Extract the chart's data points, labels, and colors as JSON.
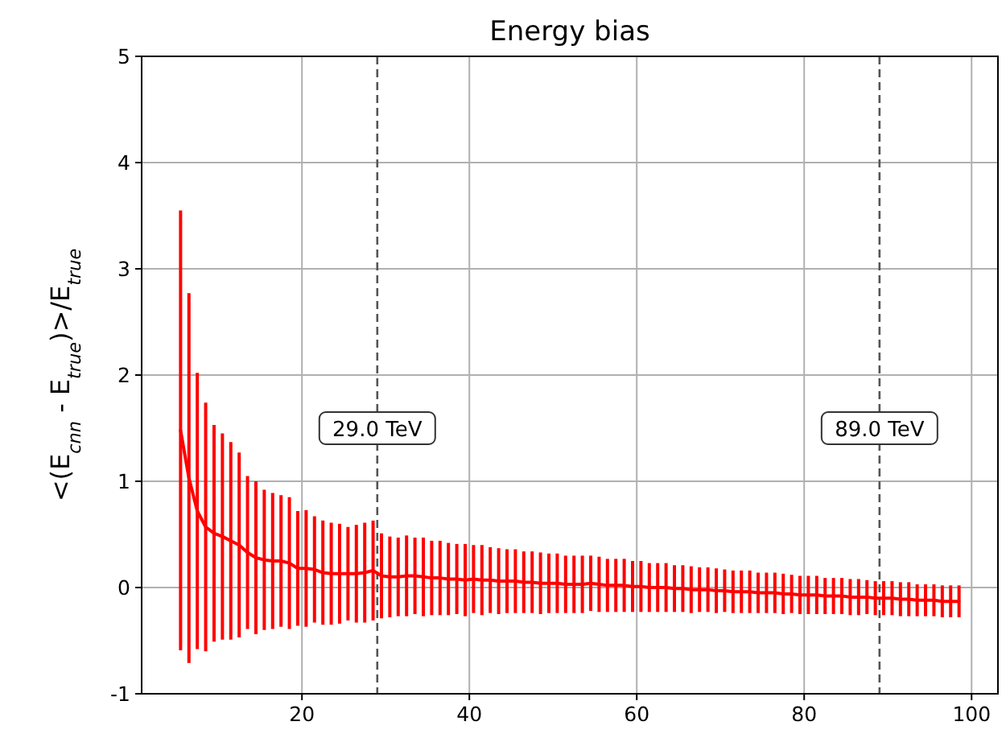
{
  "chart_data": {
    "type": "line",
    "title": "Energy bias",
    "ylabel": "<(E$_{cnn}$ - E$_{true}$)>/E$_{true}$",
    "x": [
      5.5,
      6.5,
      7.5,
      8.5,
      9.5,
      10.5,
      11.5,
      12.5,
      13.5,
      14.5,
      15.5,
      16.5,
      17.5,
      18.5,
      19.5,
      20.5,
      21.5,
      22.5,
      23.5,
      24.5,
      25.5,
      26.5,
      27.5,
      28.5,
      29.5,
      30.5,
      31.5,
      32.5,
      33.5,
      34.5,
      35.5,
      36.5,
      37.5,
      38.5,
      39.5,
      40.5,
      41.5,
      42.5,
      43.5,
      44.5,
      45.5,
      46.5,
      47.5,
      48.5,
      49.5,
      50.5,
      51.5,
      52.5,
      53.5,
      54.5,
      55.5,
      56.5,
      57.5,
      58.5,
      59.5,
      60.5,
      61.5,
      62.5,
      63.5,
      64.5,
      65.5,
      66.5,
      67.5,
      68.5,
      69.5,
      70.5,
      71.5,
      72.5,
      73.5,
      74.5,
      75.5,
      76.5,
      77.5,
      78.5,
      79.5,
      80.5,
      81.5,
      82.5,
      83.5,
      84.5,
      85.5,
      86.5,
      87.5,
      88.5,
      89.5,
      90.5,
      91.5,
      92.5,
      93.5,
      94.5,
      95.5,
      96.5,
      97.5,
      98.5
    ],
    "series": [
      {
        "color": "#ff0000",
        "values": [
          1.48,
          1.03,
          0.72,
          0.57,
          0.51,
          0.48,
          0.44,
          0.4,
          0.33,
          0.28,
          0.26,
          0.25,
          0.25,
          0.23,
          0.18,
          0.18,
          0.17,
          0.14,
          0.13,
          0.13,
          0.13,
          0.13,
          0.14,
          0.16,
          0.11,
          0.1,
          0.1,
          0.11,
          0.11,
          0.1,
          0.09,
          0.09,
          0.08,
          0.08,
          0.07,
          0.08,
          0.07,
          0.07,
          0.06,
          0.06,
          0.06,
          0.05,
          0.05,
          0.04,
          0.04,
          0.04,
          0.03,
          0.03,
          0.03,
          0.04,
          0.03,
          0.02,
          0.02,
          0.02,
          0.01,
          0.01,
          0.0,
          0.0,
          0.0,
          -0.01,
          -0.01,
          -0.02,
          -0.02,
          -0.02,
          -0.03,
          -0.03,
          -0.04,
          -0.04,
          -0.04,
          -0.05,
          -0.05,
          -0.05,
          -0.06,
          -0.06,
          -0.07,
          -0.07,
          -0.07,
          -0.08,
          -0.08,
          -0.08,
          -0.09,
          -0.09,
          -0.09,
          -0.1,
          -0.1,
          -0.1,
          -0.11,
          -0.11,
          -0.12,
          -0.12,
          -0.12,
          -0.13,
          -0.13,
          -0.13
        ],
        "errors": [
          2.07,
          1.74,
          1.3,
          1.17,
          1.02,
          0.97,
          0.93,
          0.87,
          0.72,
          0.72,
          0.66,
          0.64,
          0.62,
          0.62,
          0.54,
          0.55,
          0.5,
          0.49,
          0.48,
          0.47,
          0.44,
          0.46,
          0.47,
          0.47,
          0.4,
          0.38,
          0.37,
          0.38,
          0.36,
          0.37,
          0.35,
          0.35,
          0.34,
          0.33,
          0.34,
          0.32,
          0.33,
          0.31,
          0.31,
          0.3,
          0.3,
          0.29,
          0.29,
          0.29,
          0.28,
          0.28,
          0.27,
          0.27,
          0.27,
          0.26,
          0.26,
          0.25,
          0.25,
          0.25,
          0.24,
          0.24,
          0.23,
          0.23,
          0.23,
          0.22,
          0.22,
          0.22,
          0.21,
          0.21,
          0.21,
          0.2,
          0.2,
          0.2,
          0.2,
          0.19,
          0.19,
          0.19,
          0.19,
          0.18,
          0.18,
          0.18,
          0.18,
          0.17,
          0.17,
          0.17,
          0.17,
          0.17,
          0.16,
          0.16,
          0.16,
          0.16,
          0.16,
          0.16,
          0.15,
          0.15,
          0.15,
          0.15,
          0.15,
          0.15
        ]
      }
    ],
    "xlim": [
      0.85,
      103.15
    ],
    "xticks": [
      20,
      40,
      60,
      80,
      100
    ],
    "ylim": [
      -1,
      5
    ],
    "yticks": [
      -1,
      0,
      1,
      2,
      3,
      4,
      5
    ],
    "grid": true,
    "marker": "none",
    "line_style": "solid",
    "ref_lines": [
      {
        "axis": "x",
        "value": 29,
        "label": "29.0 TeV",
        "color": "#555555",
        "line_style": "dashed"
      },
      {
        "axis": "x",
        "value": 89,
        "label": "89.0 TeV",
        "color": "#555555",
        "line_style": "dashed"
      }
    ]
  }
}
